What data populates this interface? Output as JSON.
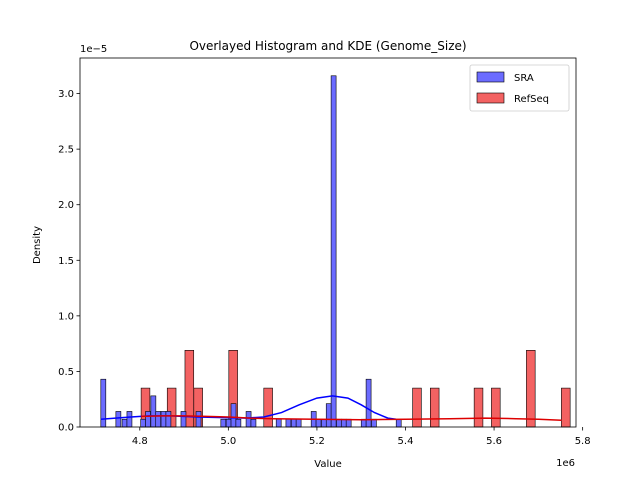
{
  "chart_data": {
    "type": "bar",
    "title": "Overlayed Histogram and KDE (Genome_Size)",
    "xlabel": "Value",
    "ylabel": "Density",
    "x_multiplier_label": "1e6",
    "y_multiplier_label": "1e−5",
    "xlim": [
      4.665,
      5.785
    ],
    "ylim": [
      0,
      3.32
    ],
    "x_ticks": [
      4.8,
      5.0,
      5.2,
      5.4,
      5.6,
      5.8
    ],
    "x_tick_labels": [
      "4.8",
      "5.0",
      "5.2",
      "5.4",
      "5.6",
      "5.8"
    ],
    "y_ticks": [
      0,
      0.5,
      1.0,
      1.5,
      2.0,
      2.5,
      3.0
    ],
    "y_tick_labels": [
      "0.0",
      "0.5",
      "1.0",
      "1.5",
      "2.0",
      "2.5",
      "3.0"
    ],
    "legend_position": "upper right",
    "series": [
      {
        "name": "SRA",
        "color": "#0000ff",
        "fill": "#6b6bff",
        "bin_width": 0.0113,
        "bins": [
          [
            4.712,
            0.43
          ],
          [
            4.746,
            0.14
          ],
          [
            4.76,
            0.07
          ],
          [
            4.771,
            0.14
          ],
          [
            4.802,
            0.07
          ],
          [
            4.813,
            0.14
          ],
          [
            4.825,
            0.28
          ],
          [
            4.836,
            0.14
          ],
          [
            4.848,
            0.14
          ],
          [
            4.859,
            0.14
          ],
          [
            4.893,
            0.14
          ],
          [
            4.927,
            0.14
          ],
          [
            4.983,
            0.07
          ],
          [
            4.995,
            0.07
          ],
          [
            5.006,
            0.21
          ],
          [
            5.017,
            0.07
          ],
          [
            5.04,
            0.14
          ],
          [
            5.051,
            0.07
          ],
          [
            5.108,
            0.07
          ],
          [
            5.13,
            0.07
          ],
          [
            5.142,
            0.07
          ],
          [
            5.153,
            0.07
          ],
          [
            5.187,
            0.14
          ],
          [
            5.198,
            0.07
          ],
          [
            5.21,
            0.07
          ],
          [
            5.221,
            0.21
          ],
          [
            5.232,
            3.16
          ],
          [
            5.244,
            0.07
          ],
          [
            5.255,
            0.07
          ],
          [
            5.266,
            0.07
          ],
          [
            5.3,
            0.07
          ],
          [
            5.311,
            0.43
          ],
          [
            5.323,
            0.07
          ],
          [
            5.379,
            0.07
          ]
        ],
        "kde": [
          [
            4.712,
            0.07
          ],
          [
            4.76,
            0.085
          ],
          [
            4.82,
            0.1
          ],
          [
            4.87,
            0.1
          ],
          [
            4.93,
            0.09
          ],
          [
            4.99,
            0.085
          ],
          [
            5.04,
            0.08
          ],
          [
            5.08,
            0.09
          ],
          [
            5.12,
            0.13
          ],
          [
            5.16,
            0.2
          ],
          [
            5.2,
            0.26
          ],
          [
            5.235,
            0.28
          ],
          [
            5.27,
            0.26
          ],
          [
            5.3,
            0.2
          ],
          [
            5.33,
            0.13
          ],
          [
            5.36,
            0.08
          ],
          [
            5.379,
            0.07
          ]
        ]
      },
      {
        "name": "RefSeq",
        "color": "#dd0000",
        "fill": "#f36262",
        "bin_width": 0.0198,
        "bins": [
          [
            4.803,
            0.35
          ],
          [
            4.862,
            0.35
          ],
          [
            4.902,
            0.69
          ],
          [
            4.922,
            0.35
          ],
          [
            5.001,
            0.69
          ],
          [
            5.08,
            0.35
          ],
          [
            5.416,
            0.35
          ],
          [
            5.456,
            0.35
          ],
          [
            5.555,
            0.35
          ],
          [
            5.594,
            0.35
          ],
          [
            5.673,
            0.69
          ],
          [
            5.752,
            0.35
          ]
        ],
        "kde": [
          [
            4.803,
            0.095
          ],
          [
            4.85,
            0.1
          ],
          [
            4.9,
            0.1
          ],
          [
            4.95,
            0.095
          ],
          [
            5.0,
            0.09
          ],
          [
            5.05,
            0.08
          ],
          [
            5.1,
            0.075
          ],
          [
            5.2,
            0.07
          ],
          [
            5.3,
            0.065
          ],
          [
            5.4,
            0.07
          ],
          [
            5.5,
            0.075
          ],
          [
            5.58,
            0.08
          ],
          [
            5.65,
            0.075
          ],
          [
            5.7,
            0.07
          ],
          [
            5.752,
            0.06
          ]
        ]
      }
    ]
  }
}
